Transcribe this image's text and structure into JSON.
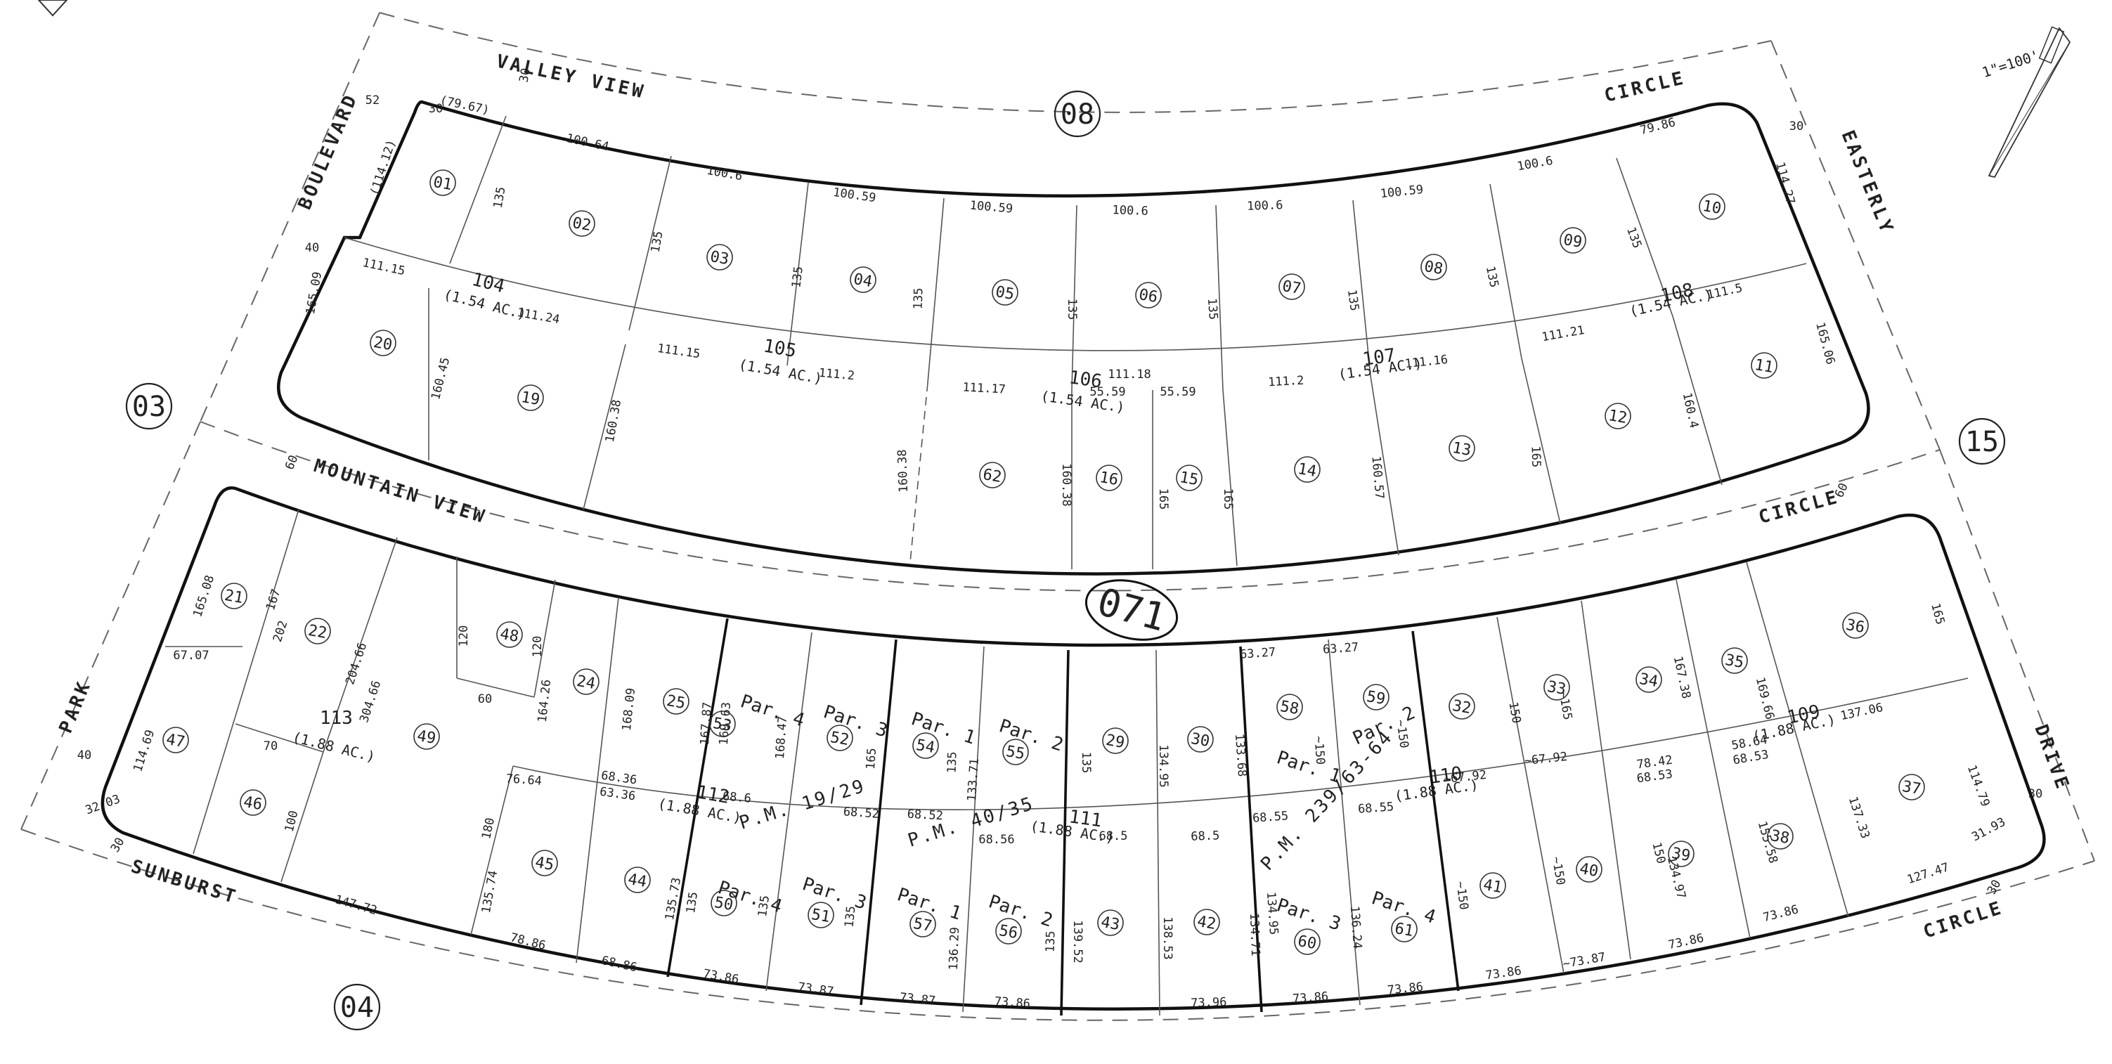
{
  "map": {
    "book_page": "071",
    "scale": "1\"=100'",
    "streets": {
      "valley_view_circle": [
        "VALLEY VIEW",
        "CIRCLE"
      ],
      "boulevard": "BOULEVARD",
      "easterly": "EASTERLY",
      "mountain_view_circle": [
        "MOUNTAIN VIEW",
        "CIRCLE"
      ],
      "park": "PARK",
      "drive": "DRIVE",
      "sunburst_circle": [
        "SUNBURST",
        "CIRCLE"
      ]
    },
    "adjacent_pages": [
      "08",
      "03",
      "15",
      "04"
    ],
    "blocks": [
      {
        "id": "104",
        "area": "(1.54 AC.)"
      },
      {
        "id": "105",
        "area": "(1.54 AC.)"
      },
      {
        "id": "106",
        "area": "(1.54 AC.)"
      },
      {
        "id": "107",
        "area": "(1.54 AC.)"
      },
      {
        "id": "108",
        "area": "(1.54 AC.)"
      },
      {
        "id": "113",
        "area": "(1.88 AC.)"
      },
      {
        "id": "112",
        "area": "(1.88 AC.)"
      },
      {
        "id": "111",
        "area": "(1.88 AC.)"
      },
      {
        "id": "110",
        "area": "(1.88 AC.)"
      },
      {
        "id": "109",
        "area": "(1.88 AC.)"
      }
    ],
    "parcel_maps": [
      "P.M. 19/29",
      "P.M. 40/35",
      "P.M. 239/63-64"
    ],
    "parcels": [
      "01",
      "02",
      "03",
      "04",
      "05",
      "06",
      "07",
      "08",
      "09",
      "10",
      "11",
      "12",
      "13",
      "14",
      "15",
      "16",
      "62",
      "19",
      "20",
      "21",
      "22",
      "48",
      "24",
      "25",
      "53",
      "52",
      "54",
      "55",
      "29",
      "30",
      "58",
      "59",
      "32",
      "33",
      "34",
      "35",
      "36",
      "47",
      "46",
      "49",
      "45",
      "44",
      "50",
      "51",
      "57",
      "56",
      "43",
      "42",
      "60",
      "61",
      "41",
      "40",
      "39",
      "38",
      "37"
    ],
    "par_labels": [
      "Par. 4",
      "Par. 3",
      "Par. 1",
      "Par. 2",
      "Par. 1",
      "Par. 2",
      "Par. 4",
      "Par. 3",
      "Par. 1",
      "Par. 2",
      "Par. 3",
      "Par. 4"
    ],
    "dimensions": {
      "upper_front": [
        "(79.67)",
        "100.64",
        "100.6",
        "100.59",
        "100.59",
        "100.6",
        "100.6",
        "100.59",
        "100.6",
        "79.86"
      ],
      "upper_mid": [
        "111.15",
        "111.24",
        "111.15",
        "111.2",
        "111.17",
        "55.59",
        "55.59",
        "111.18",
        "111.2",
        "111.16",
        "111.21",
        "111.5"
      ],
      "upper_depth": [
        "135",
        "135",
        "135",
        "135",
        "135",
        "135",
        "135",
        "135",
        "135"
      ],
      "upper_sides": [
        "(114.12)",
        "165.09",
        "160.45",
        "160.38",
        "160.38",
        "160.38",
        "165",
        "165",
        "160.57",
        "165",
        "160.4",
        "114.27",
        "165.06"
      ],
      "street_widths": [
        "30",
        "52",
        "40",
        "30",
        "30",
        "60",
        "60",
        "40",
        "30",
        "30",
        "30"
      ],
      "lower_top": [
        "63.27",
        "63.27"
      ],
      "lower_depth": [
        "165.08",
        "167",
        "202",
        "204.66",
        "304.66",
        "120",
        "120",
        "164.26",
        "168.09",
        "167.87",
        "169.63",
        "168.47",
        "165",
        "135",
        "135",
        "134.95",
        "133.68",
        "~150",
        "~150",
        "150",
        "~165",
        "167.38",
        "169.66",
        "165"
      ],
      "lower_mid": [
        "67.07",
        "70",
        "60",
        "76.64",
        "68.36",
        "63.36",
        "68.6",
        "68.52",
        "68.52",
        "68.56",
        "68.5",
        "68.5",
        "68.55",
        "68.55",
        "~67.92",
        "~67.92",
        "78.42",
        "68.53",
        "58.64",
        "68.53",
        "137.06"
      ],
      "lower_lower_depth": [
        "114.69",
        "100",
        "180",
        "135.74",
        "135.73",
        "135",
        "135",
        "135",
        "133.71",
        "136.29",
        "135",
        "139.52",
        "138.53",
        "134.71",
        "134.95",
        "136.24",
        "~150",
        "~150",
        "150",
        "134.97",
        "155.58",
        "137.33",
        "114.79"
      ],
      "lower_front": [
        "32.03",
        "147.72",
        "78.86",
        "68.86",
        "73.86",
        "73.87",
        "73.87",
        "73.86",
        "73.96",
        "73.86",
        "73.86",
        "73.86",
        "~73.87",
        "73.86",
        "73.86",
        "127.47",
        "31.93"
      ]
    }
  }
}
